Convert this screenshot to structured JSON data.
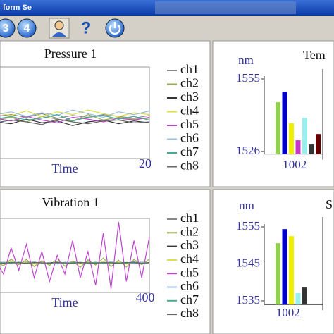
{
  "window": {
    "title": "form Se"
  },
  "toolbar": {
    "buttons": [
      "3",
      "4",
      "?"
    ]
  },
  "chart_data": [
    {
      "type": "line",
      "title": "Pressure 1",
      "x_label": "Time",
      "x": [
        0,
        2,
        4,
        6,
        8,
        10,
        12,
        14,
        16,
        18,
        20
      ],
      "xlim": [
        0,
        20
      ],
      "xticks": [
        20
      ],
      "ylim": [
        0,
        10
      ],
      "series": [
        {
          "name": "ch1",
          "color": "#888888",
          "values": [
            4.6,
            4.8,
            4.5,
            4.9,
            4.4,
            4.7,
            4.5,
            4.8,
            4.6,
            4.4,
            4.7
          ]
        },
        {
          "name": "ch2",
          "color": "#99aa55",
          "values": [
            4.2,
            4.5,
            4.0,
            4.6,
            4.3,
            4.1,
            4.8,
            4.2,
            4.5,
            4.3,
            4.4
          ]
        },
        {
          "name": "ch3",
          "color": "#333333",
          "values": [
            4.0,
            3.8,
            4.3,
            3.9,
            4.1,
            3.6,
            4.0,
            4.2,
            3.8,
            4.1,
            3.9
          ]
        },
        {
          "name": "ch4",
          "color": "#dddd44",
          "values": [
            5.0,
            4.7,
            5.2,
            4.6,
            5.1,
            4.8,
            5.3,
            4.9,
            4.6,
            5.0,
            4.8
          ]
        },
        {
          "name": "ch5",
          "color": "#bb44cc",
          "values": [
            4.4,
            4.1,
            4.6,
            4.2,
            3.9,
            4.5,
            4.3,
            4.0,
            4.4,
            4.2,
            4.5
          ]
        },
        {
          "name": "ch6",
          "color": "#99bbdd",
          "values": [
            4.8,
            5.1,
            4.6,
            5.0,
            4.7,
            5.3,
            4.9,
            4.5,
            5.1,
            4.8,
            5.2
          ]
        },
        {
          "name": "ch7",
          "color": "#44aa99",
          "values": [
            4.3,
            4.6,
            4.2,
            4.4,
            4.8,
            4.1,
            4.5,
            4.7,
            4.3,
            4.6,
            4.2
          ]
        },
        {
          "name": "ch8",
          "color": "#666666",
          "values": [
            3.9,
            4.2,
            4.0,
            3.7,
            4.3,
            4.0,
            3.8,
            4.1,
            4.2,
            3.9,
            4.0
          ]
        }
      ]
    },
    {
      "type": "line",
      "title": "Vibration 1",
      "x_label": "Time",
      "x": [
        0,
        20,
        40,
        60,
        80,
        100,
        120,
        140,
        160,
        180,
        200,
        220,
        240,
        260,
        280,
        300,
        320,
        340,
        360,
        380,
        400
      ],
      "xlim": [
        0,
        400
      ],
      "xticks": [
        400
      ],
      "ylim": [
        -8,
        12
      ],
      "series": [
        {
          "name": "ch1",
          "color": "#888888",
          "values": [
            0.2,
            -0.3,
            0.1,
            -0.2,
            0.3,
            -0.1,
            0.2,
            -0.3,
            0.1,
            -0.2,
            0.3,
            -0.1,
            0.2,
            -0.2,
            0.1,
            -0.3,
            0.2,
            -0.1,
            0.3,
            -0.2,
            0.1
          ]
        },
        {
          "name": "ch2",
          "color": "#99aa55",
          "values": [
            0.3,
            -0.8,
            1,
            -0.5,
            0.9,
            -1,
            0.6,
            -0.7,
            1.1,
            -0.9,
            0.5,
            -1.2,
            0.8,
            -0.6,
            1.3,
            -1,
            0.7,
            -1.1,
            0.9,
            -0.5,
            1
          ]
        },
        {
          "name": "ch3",
          "color": "#333333",
          "values": [
            0,
            0.2,
            -0.2,
            0.1,
            -0.1,
            0.2,
            -0.2,
            0.1,
            0,
            -0.1,
            0.2,
            -0.2,
            0.1,
            -0.1,
            0.2,
            0,
            -0.2,
            0.1,
            -0.1,
            0.2,
            -0.1
          ]
        },
        {
          "name": "ch4",
          "color": "#dddd44",
          "values": [
            0.1,
            -0.2,
            0.3,
            -0.1,
            0.2,
            -0.3,
            0.1,
            -0.2,
            0.3,
            -0.1,
            0.2,
            -0.3,
            0.1,
            -0.2,
            0.3,
            -0.1,
            0.2,
            -0.3,
            0.1,
            -0.2,
            0.2
          ]
        },
        {
          "name": "ch5",
          "color": "#bb44cc",
          "values": [
            0.5,
            -3,
            4,
            -2,
            5,
            -4,
            3,
            -5,
            2,
            -3,
            6,
            -4,
            3,
            -6,
            8,
            -7,
            11,
            -5,
            6,
            -4,
            7
          ]
        },
        {
          "name": "ch6",
          "color": "#99bbdd",
          "values": [
            -0.1,
            0.2,
            -0.2,
            0.1,
            -0.1,
            0.3,
            -0.2,
            0.1,
            -0.3,
            0.2,
            -0.1,
            0.2,
            -0.2,
            0.1,
            -0.1,
            0.3,
            -0.2,
            0.1,
            -0.2,
            0.2,
            -0.1
          ]
        },
        {
          "name": "ch7",
          "color": "#44aa99",
          "values": [
            0.1,
            0,
            -0.1,
            0.2,
            -0.2,
            0.1,
            0,
            -0.1,
            0.2,
            -0.2,
            0.1,
            0,
            -0.1,
            0.2,
            -0.2,
            0.1,
            0,
            -0.1,
            0.2,
            -0.2,
            0.1
          ]
        },
        {
          "name": "ch8",
          "color": "#666666",
          "values": [
            0,
            -0.1,
            0.1,
            0,
            -0.1,
            0.1,
            0,
            -0.1,
            0.1,
            0,
            -0.1,
            0.1,
            0,
            -0.1,
            0.1,
            0,
            -0.1,
            0.1,
            0,
            -0.1,
            0.1
          ]
        }
      ]
    },
    {
      "type": "bar",
      "title": "Tem",
      "y_label": "nm",
      "categories": [
        "1002"
      ],
      "ylim": [
        1525,
        1555
      ],
      "yticks": [
        1555,
        1526
      ],
      "series": [
        {
          "color": "#90d050",
          "values": [
            1545.7
          ]
        },
        {
          "color": "#0000cc",
          "values": [
            1549.9
          ]
        },
        {
          "color": "#f0f000",
          "values": [
            1537.3
          ]
        },
        {
          "color": "#cc33cc",
          "values": [
            1530.5
          ]
        },
        {
          "color": "#99eeee",
          "values": [
            1539.5
          ]
        },
        {
          "color": "#333333",
          "values": [
            1528.8
          ]
        },
        {
          "color": "#660000",
          "values": [
            1533
          ]
        }
      ]
    },
    {
      "type": "bar",
      "title": "S",
      "y_label": "nm",
      "categories": [
        "1002"
      ],
      "ylim": [
        1534,
        1555
      ],
      "yticks": [
        1555,
        1545,
        1535
      ],
      "series": [
        {
          "color": "#90d050",
          "values": [
            1550.6
          ]
        },
        {
          "color": "#0000cc",
          "values": [
            1554.4
          ]
        },
        {
          "color": "#f0f000",
          "values": [
            1552.5
          ]
        },
        {
          "color": "#99eeee",
          "values": [
            1537.1
          ]
        },
        {
          "color": "#333333",
          "values": [
            1538.6
          ]
        }
      ]
    }
  ]
}
